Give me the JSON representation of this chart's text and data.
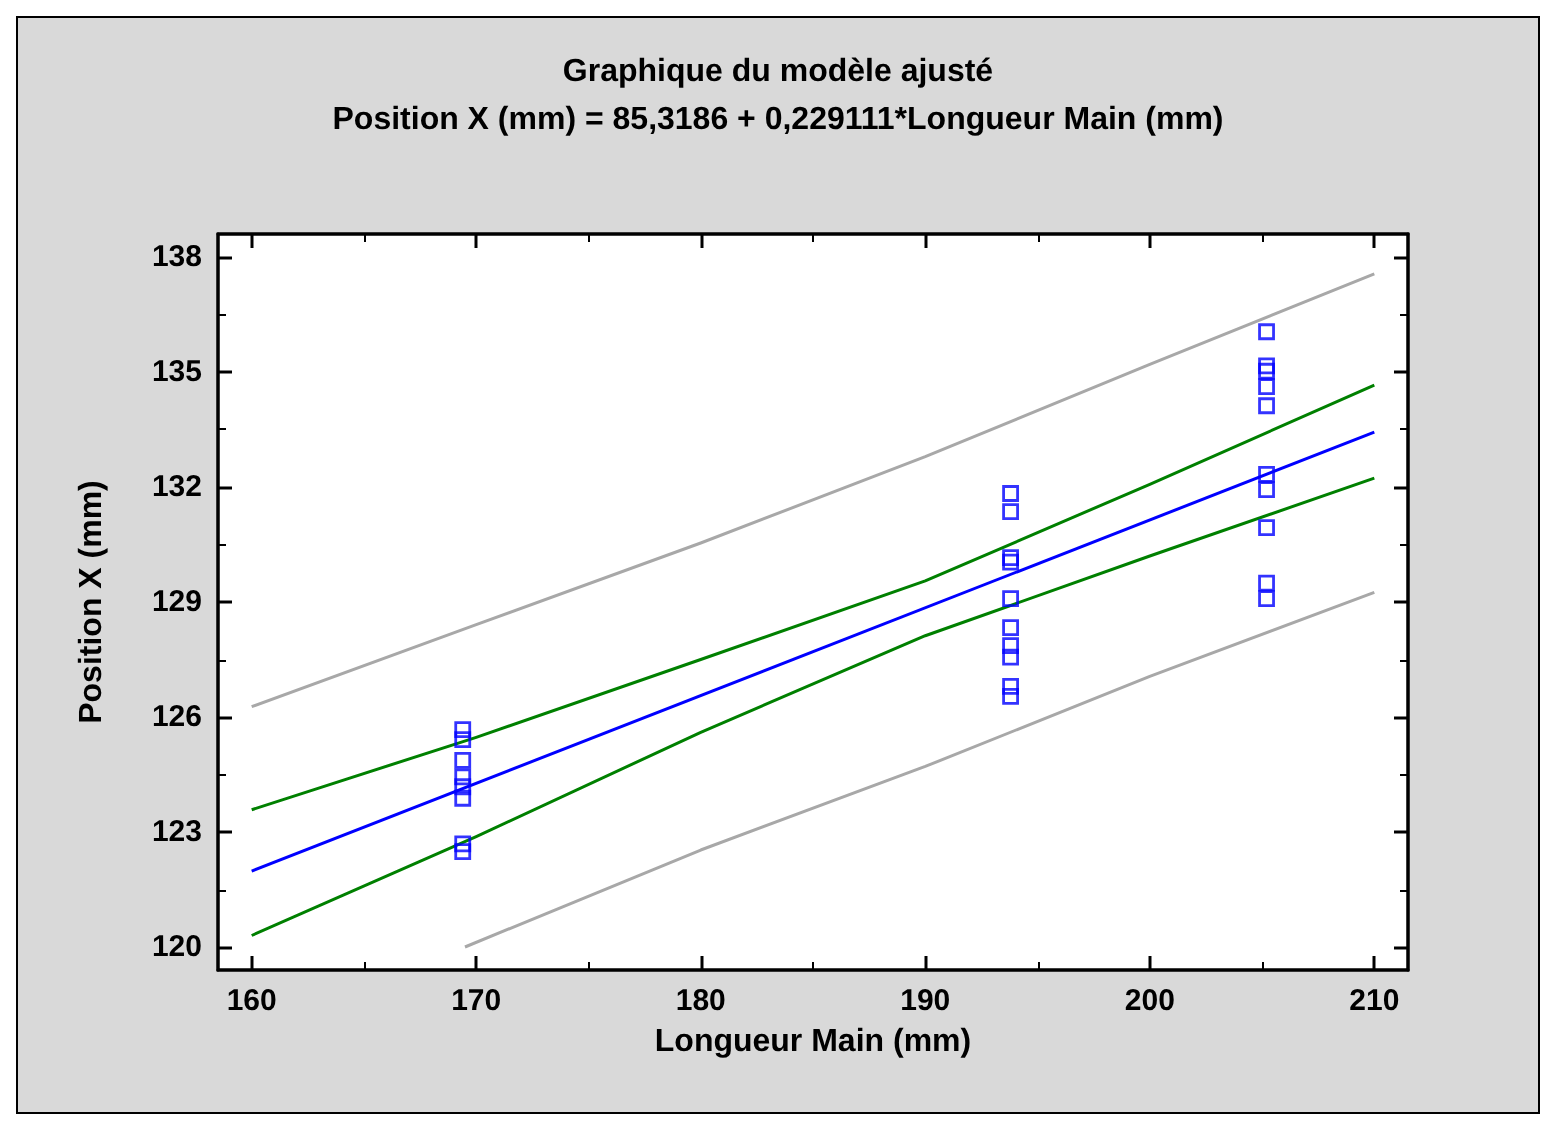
{
  "chart_data": {
    "type": "scatter",
    "title": "Graphique du modèle ajusté",
    "subtitle": "Position X (mm) = 85,3186 + 0,229111*Longueur Main (mm)",
    "xlabel": "Longueur Main (mm)",
    "ylabel": "Position X (mm)",
    "xlim": [
      158.5,
      211.5
    ],
    "xticks": [
      160,
      170,
      180,
      190,
      200,
      210
    ],
    "ylim": [
      119.4,
      138.6
    ],
    "yticks": [
      120,
      123,
      126,
      129,
      132,
      135,
      138
    ],
    "grid": false,
    "series": [
      {
        "color": "#0000ff",
        "marker": "square",
        "x": [
          169.4,
          169.4,
          169.4,
          169.4,
          169.4,
          169.4,
          169.4,
          169.4,
          193.8,
          193.8,
          193.8,
          193.8,
          193.8,
          193.8,
          193.8,
          193.8,
          193.8,
          193.8,
          205.2,
          205.2,
          205.2,
          205.2,
          205.2,
          205.2,
          205.2,
          205.2,
          205.2,
          205.2
        ],
        "values": [
          125.67,
          125.41,
          124.87,
          124.44,
          124.18,
          123.88,
          122.69,
          122.49,
          131.83,
          131.36,
          130.16,
          130.04,
          129.09,
          128.33,
          127.86,
          127.56,
          126.8,
          126.54,
          136.05,
          135.16,
          135.02,
          134.62,
          134.12,
          132.33,
          131.93,
          130.94,
          129.49,
          129.09
        ]
      },
      {
        "type": "line",
        "color": "#0000ff",
        "marker": "none",
        "line_style": "solid",
        "x": [
          160,
          210
        ],
        "values": [
          121.98,
          133.43
        ]
      },
      {
        "type": "line",
        "color": "#008000",
        "marker": "none",
        "line_style": "solid",
        "x": [
          160,
          170,
          180,
          190,
          200,
          210
        ],
        "values": [
          123.58,
          125.47,
          127.5,
          129.55,
          132.07,
          134.66
        ]
      },
      {
        "type": "line",
        "color": "#008000",
        "marker": "none",
        "line_style": "solid",
        "x": [
          160,
          170,
          180,
          190,
          200,
          210
        ],
        "values": [
          120.3,
          122.88,
          125.6,
          128.12,
          130.2,
          132.23
        ]
      },
      {
        "type": "line",
        "color": "#a8a8a8",
        "marker": "none",
        "line_style": "solid",
        "x": [
          160,
          170,
          180,
          190,
          200,
          210
        ],
        "values": [
          126.27,
          128.41,
          130.54,
          132.79,
          135.2,
          137.56
        ]
      },
      {
        "type": "line",
        "color": "#a8a8a8",
        "marker": "none",
        "line_style": "solid",
        "x": [
          169.5,
          180,
          190,
          200,
          210
        ],
        "values": [
          120.0,
          122.53,
          124.71,
          127.06,
          129.25
        ]
      }
    ]
  }
}
